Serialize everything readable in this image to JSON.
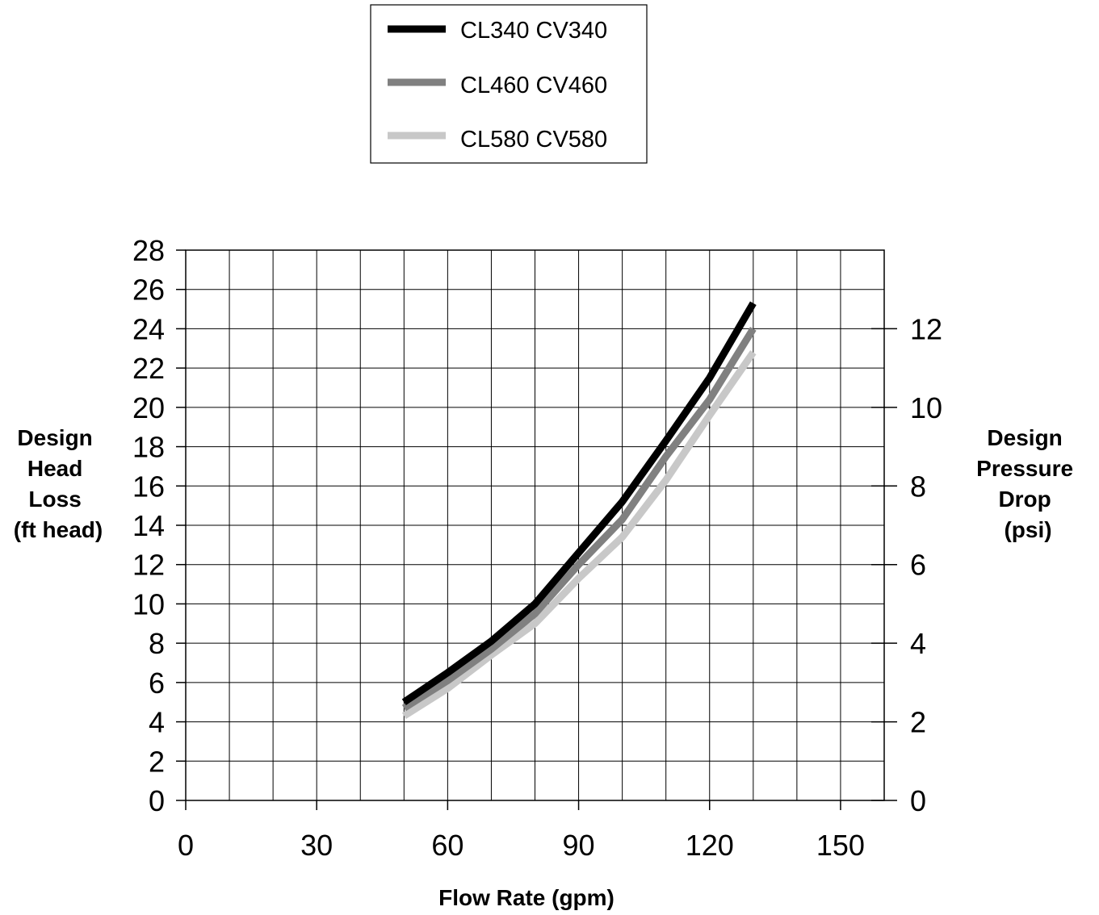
{
  "chart_data": {
    "type": "line",
    "series": [
      {
        "name": "CL340 CV340",
        "color": "#000000",
        "x": [
          50,
          60,
          70,
          80,
          90,
          100,
          110,
          120,
          130
        ],
        "y": [
          5.0,
          6.5,
          8.1,
          10.0,
          12.6,
          15.2,
          18.3,
          21.5,
          25.3
        ]
      },
      {
        "name": "CL460 CV460",
        "color": "#808080",
        "x": [
          50,
          60,
          70,
          80,
          90,
          100,
          110,
          120,
          130
        ],
        "y": [
          4.7,
          6.1,
          7.7,
          9.5,
          12.0,
          14.3,
          17.5,
          20.4,
          24.0
        ]
      },
      {
        "name": "CL580 CV580",
        "color": "#c8c8c8",
        "x": [
          50,
          60,
          70,
          80,
          90,
          100,
          110,
          120,
          130
        ],
        "y": [
          4.3,
          5.7,
          7.4,
          9.0,
          11.3,
          13.4,
          16.3,
          19.6,
          22.8
        ]
      }
    ],
    "xlabel": "Flow Rate (gpm)",
    "ylabel": [
      "Design",
      "Head",
      "Loss",
      "(ft head)"
    ],
    "y2label": [
      "Design",
      "Pressure",
      "Drop",
      "(psi)"
    ],
    "xlim": [
      0,
      160
    ],
    "ylim": [
      0,
      28
    ],
    "y2lim": [
      0,
      14
    ],
    "xticks": [
      0,
      30,
      60,
      90,
      120,
      150
    ],
    "yticks": [
      0,
      2,
      4,
      6,
      8,
      10,
      12,
      14,
      16,
      18,
      20,
      22,
      24,
      26,
      28
    ],
    "y2ticks": [
      0,
      2,
      4,
      6,
      8,
      10,
      12
    ],
    "x_grid_step": 10,
    "y_grid_step": 2,
    "grid": true,
    "legend_position": "top-center"
  }
}
